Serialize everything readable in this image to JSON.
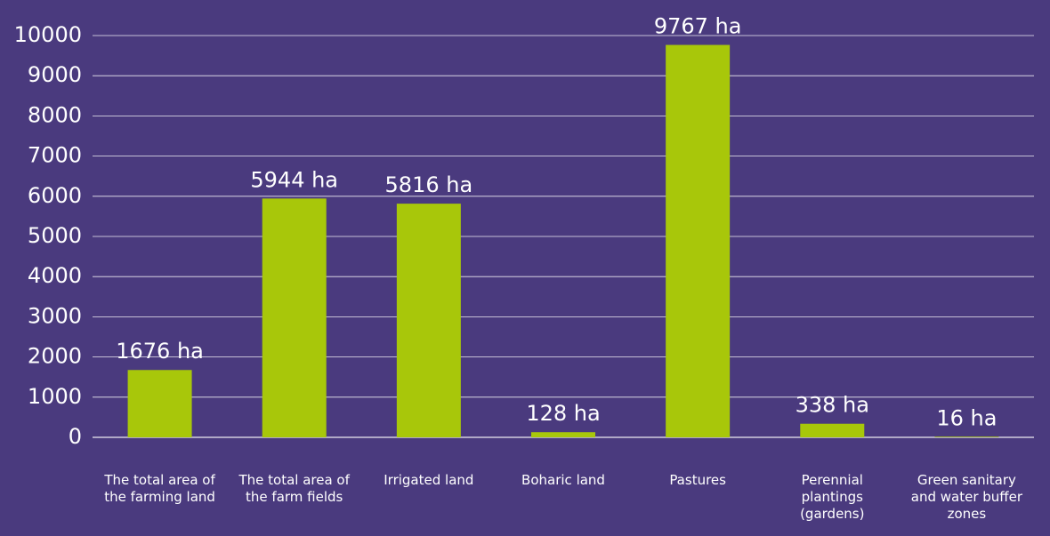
{
  "chart_data": {
    "type": "bar",
    "categories": [
      "The total area of the farming land",
      "The total area of the farm fields",
      "Irrigated land",
      "Boharic land",
      "Pastures",
      "Perennial plantings (gardens)",
      "Green sanitary and water buffer zones"
    ],
    "values": [
      1676,
      5944,
      5816,
      128,
      9767,
      338,
      16
    ],
    "value_labels": [
      "1676 ha",
      "5944 ha",
      "5816 ha",
      "128 ha",
      "9767 ha",
      "338 ha",
      "16 ha"
    ],
    "color": "#a8c70a",
    "ylim": [
      0,
      10000
    ],
    "yticks": [
      0,
      1000,
      2000,
      3000,
      4000,
      5000,
      6000,
      7000,
      8000,
      9000,
      10000
    ],
    "grid": true
  }
}
